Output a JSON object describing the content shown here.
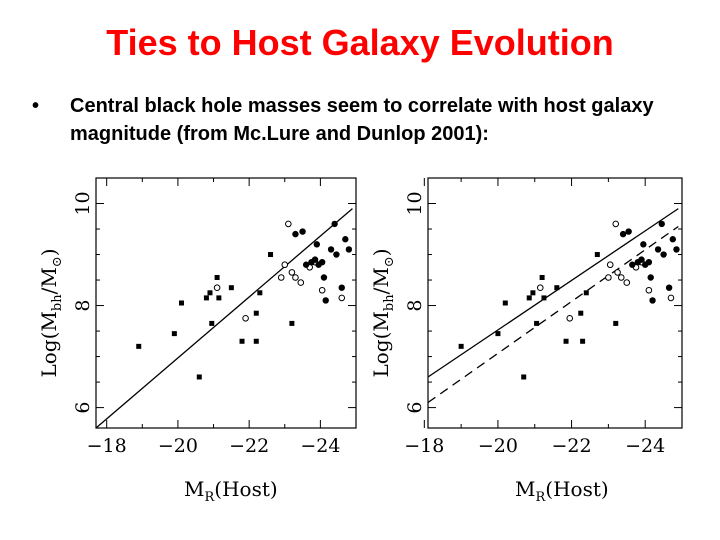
{
  "slide": {
    "title": "Ties to Host Galaxy Evolution",
    "bullet_symbol": "•",
    "bullet_text": "Central black hole masses seem to correlate with host galaxy magnitude (from Mc.Lure and Dunlop 2001):"
  },
  "chart_data": [
    {
      "type": "scatter",
      "panel": "left",
      "xlabel": "M_R(Host)",
      "ylabel": "Log(M_bh/M_⊙)",
      "xlim": [
        -17.7,
        -25.0
      ],
      "ylim": [
        5.6,
        10.5
      ],
      "xticks": [
        -18,
        -20,
        -22,
        -24
      ],
      "xtick_labels": [
        "−18",
        "−20",
        "−22",
        "−24"
      ],
      "yticks": [
        6,
        8,
        10
      ],
      "ytick_labels": [
        "6",
        "8",
        "10"
      ],
      "series": [
        {
          "name": "squares",
          "marker": "square",
          "points": [
            [
              -18.9,
              7.2
            ],
            [
              -19.9,
              7.45
            ],
            [
              -20.1,
              8.05
            ],
            [
              -20.6,
              6.6
            ],
            [
              -20.8,
              8.15
            ],
            [
              -20.9,
              8.25
            ],
            [
              -20.95,
              7.65
            ],
            [
              -21.1,
              8.55
            ],
            [
              -21.15,
              8.15
            ],
            [
              -21.5,
              8.35
            ],
            [
              -21.8,
              7.3
            ],
            [
              -22.2,
              7.85
            ],
            [
              -22.2,
              7.3
            ],
            [
              -22.3,
              8.25
            ],
            [
              -22.6,
              9.0
            ],
            [
              -23.2,
              7.65
            ]
          ]
        },
        {
          "name": "open circles",
          "marker": "open-circle",
          "points": [
            [
              -21.1,
              8.35
            ],
            [
              -21.9,
              7.75
            ],
            [
              -22.9,
              8.55
            ],
            [
              -23.0,
              8.8
            ],
            [
              -23.1,
              9.6
            ],
            [
              -23.2,
              8.65
            ],
            [
              -23.3,
              8.55
            ],
            [
              -23.45,
              8.45
            ],
            [
              -23.7,
              8.75
            ],
            [
              -23.85,
              8.85
            ],
            [
              -24.05,
              8.3
            ],
            [
              -24.6,
              8.15
            ]
          ]
        },
        {
          "name": "filled circles",
          "marker": "filled-circle",
          "points": [
            [
              -23.3,
              9.4
            ],
            [
              -23.5,
              9.45
            ],
            [
              -23.6,
              8.8
            ],
            [
              -23.75,
              8.85
            ],
            [
              -23.85,
              8.9
            ],
            [
              -23.9,
              9.2
            ],
            [
              -23.95,
              8.8
            ],
            [
              -24.05,
              8.85
            ],
            [
              -24.1,
              8.55
            ],
            [
              -24.15,
              8.1
            ],
            [
              -24.3,
              9.1
            ],
            [
              -24.4,
              9.6
            ],
            [
              -24.45,
              9.0
            ],
            [
              -24.6,
              8.35
            ],
            [
              -24.7,
              9.3
            ],
            [
              -24.8,
              9.1
            ]
          ]
        }
      ],
      "lines": [
        {
          "name": "solid fit",
          "style": "solid",
          "points": [
            [
              -17.7,
              5.6
            ],
            [
              -24.9,
              9.9
            ]
          ]
        }
      ]
    },
    {
      "type": "scatter",
      "panel": "right",
      "xlabel": "M_R(Host)",
      "ylabel": "Log(M_bh/M_⊙)",
      "xlim": [
        -18.1,
        -25.0
      ],
      "ylim": [
        5.6,
        10.5
      ],
      "xticks": [
        -18,
        -20,
        -22,
        -24
      ],
      "xtick_labels": [
        "−18",
        "−20",
        "−22",
        "−24"
      ],
      "yticks": [
        6,
        8,
        10
      ],
      "ytick_labels": [
        "6",
        "8",
        "10"
      ],
      "series": [
        {
          "name": "squares",
          "marker": "square",
          "points": [
            [
              -19.0,
              7.2
            ],
            [
              -20.0,
              7.45
            ],
            [
              -20.2,
              8.05
            ],
            [
              -20.7,
              6.6
            ],
            [
              -20.85,
              8.15
            ],
            [
              -20.95,
              8.25
            ],
            [
              -21.05,
              7.65
            ],
            [
              -21.2,
              8.55
            ],
            [
              -21.25,
              8.15
            ],
            [
              -21.6,
              8.35
            ],
            [
              -21.85,
              7.3
            ],
            [
              -22.25,
              7.85
            ],
            [
              -22.3,
              7.3
            ],
            [
              -22.4,
              8.25
            ],
            [
              -22.7,
              9.0
            ],
            [
              -23.2,
              7.65
            ]
          ]
        },
        {
          "name": "open circles",
          "marker": "open-circle",
          "points": [
            [
              -21.15,
              8.35
            ],
            [
              -21.95,
              7.75
            ],
            [
              -23.0,
              8.55
            ],
            [
              -23.05,
              8.8
            ],
            [
              -23.2,
              9.6
            ],
            [
              -23.25,
              8.65
            ],
            [
              -23.35,
              8.55
            ],
            [
              -23.5,
              8.45
            ],
            [
              -23.75,
              8.75
            ],
            [
              -23.9,
              8.85
            ],
            [
              -24.1,
              8.3
            ],
            [
              -24.7,
              8.15
            ]
          ]
        },
        {
          "name": "filled circles",
          "marker": "filled-circle",
          "points": [
            [
              -23.4,
              9.4
            ],
            [
              -23.55,
              9.45
            ],
            [
              -23.65,
              8.8
            ],
            [
              -23.8,
              8.85
            ],
            [
              -23.9,
              8.9
            ],
            [
              -23.95,
              9.2
            ],
            [
              -24.0,
              8.8
            ],
            [
              -24.1,
              8.85
            ],
            [
              -24.15,
              8.55
            ],
            [
              -24.2,
              8.1
            ],
            [
              -24.35,
              9.1
            ],
            [
              -24.45,
              9.6
            ],
            [
              -24.5,
              9.0
            ],
            [
              -24.65,
              8.35
            ],
            [
              -24.75,
              9.3
            ],
            [
              -24.85,
              9.1
            ]
          ]
        }
      ],
      "lines": [
        {
          "name": "solid fit",
          "style": "solid",
          "points": [
            [
              -18.1,
              6.6
            ],
            [
              -24.9,
              9.9
            ]
          ]
        },
        {
          "name": "dashed fit",
          "style": "dashed",
          "points": [
            [
              -18.1,
              6.1
            ],
            [
              -24.9,
              9.55
            ]
          ]
        }
      ]
    }
  ]
}
